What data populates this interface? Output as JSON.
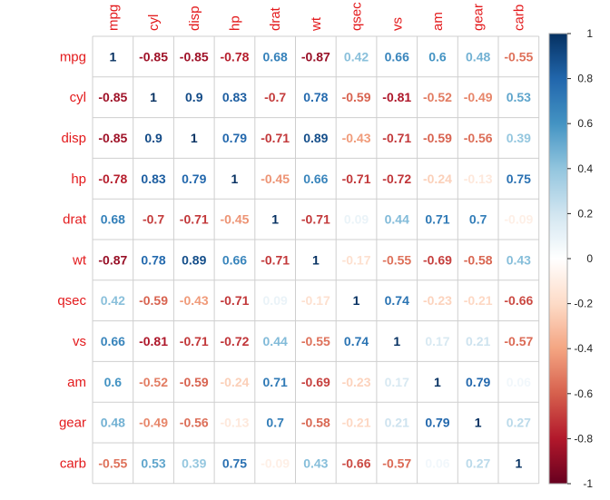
{
  "chart_data": {
    "type": "heatmap",
    "title": "",
    "variables": [
      "mpg",
      "cyl",
      "disp",
      "hp",
      "drat",
      "wt",
      "qsec",
      "vs",
      "am",
      "gear",
      "carb"
    ],
    "matrix": [
      [
        1,
        -0.85,
        -0.85,
        -0.78,
        0.68,
        -0.87,
        0.42,
        0.66,
        0.6,
        0.48,
        -0.55
      ],
      [
        -0.85,
        1,
        0.9,
        0.83,
        -0.7,
        0.78,
        -0.59,
        -0.81,
        -0.52,
        -0.49,
        0.53
      ],
      [
        -0.85,
        0.9,
        1,
        0.79,
        -0.71,
        0.89,
        -0.43,
        -0.71,
        -0.59,
        -0.56,
        0.39
      ],
      [
        -0.78,
        0.83,
        0.79,
        1,
        -0.45,
        0.66,
        -0.71,
        -0.72,
        -0.24,
        -0.13,
        0.75
      ],
      [
        0.68,
        -0.7,
        -0.71,
        -0.45,
        1,
        -0.71,
        0.09,
        0.44,
        0.71,
        0.7,
        -0.09
      ],
      [
        -0.87,
        0.78,
        0.89,
        0.66,
        -0.71,
        1,
        -0.17,
        -0.55,
        -0.69,
        -0.58,
        0.43
      ],
      [
        0.42,
        -0.59,
        -0.43,
        -0.71,
        0.09,
        -0.17,
        1,
        0.74,
        -0.23,
        -0.21,
        -0.66
      ],
      [
        0.66,
        -0.81,
        -0.71,
        -0.72,
        0.44,
        -0.55,
        0.74,
        1,
        0.17,
        0.21,
        -0.57
      ],
      [
        0.6,
        -0.52,
        -0.59,
        -0.24,
        0.71,
        -0.69,
        -0.23,
        0.17,
        1,
        0.79,
        0.06
      ],
      [
        0.48,
        -0.49,
        -0.56,
        -0.13,
        0.7,
        -0.58,
        -0.21,
        0.21,
        0.79,
        1,
        0.27
      ],
      [
        -0.55,
        0.53,
        0.39,
        0.75,
        -0.09,
        0.43,
        -0.66,
        -0.57,
        0.06,
        0.27,
        1
      ]
    ],
    "colorbar": {
      "range": [
        -1,
        1
      ],
      "ticks": [
        "1",
        "0.8",
        "0.6",
        "0.4",
        "0.2",
        "0",
        "-0.2",
        "-0.4",
        "-0.6",
        "-0.8",
        "-1"
      ]
    },
    "colors": {
      "label": "#e31a1c",
      "grid": "#cfcfcf",
      "frame": "#aaaaaa",
      "tick_text": "#222222",
      "palette": [
        "#67001F",
        "#B2182B",
        "#D6604D",
        "#F4A582",
        "#FDDBC7",
        "#FFFFFF",
        "#D1E5F0",
        "#92C5DE",
        "#4393C3",
        "#2166AC",
        "#053061"
      ]
    }
  }
}
